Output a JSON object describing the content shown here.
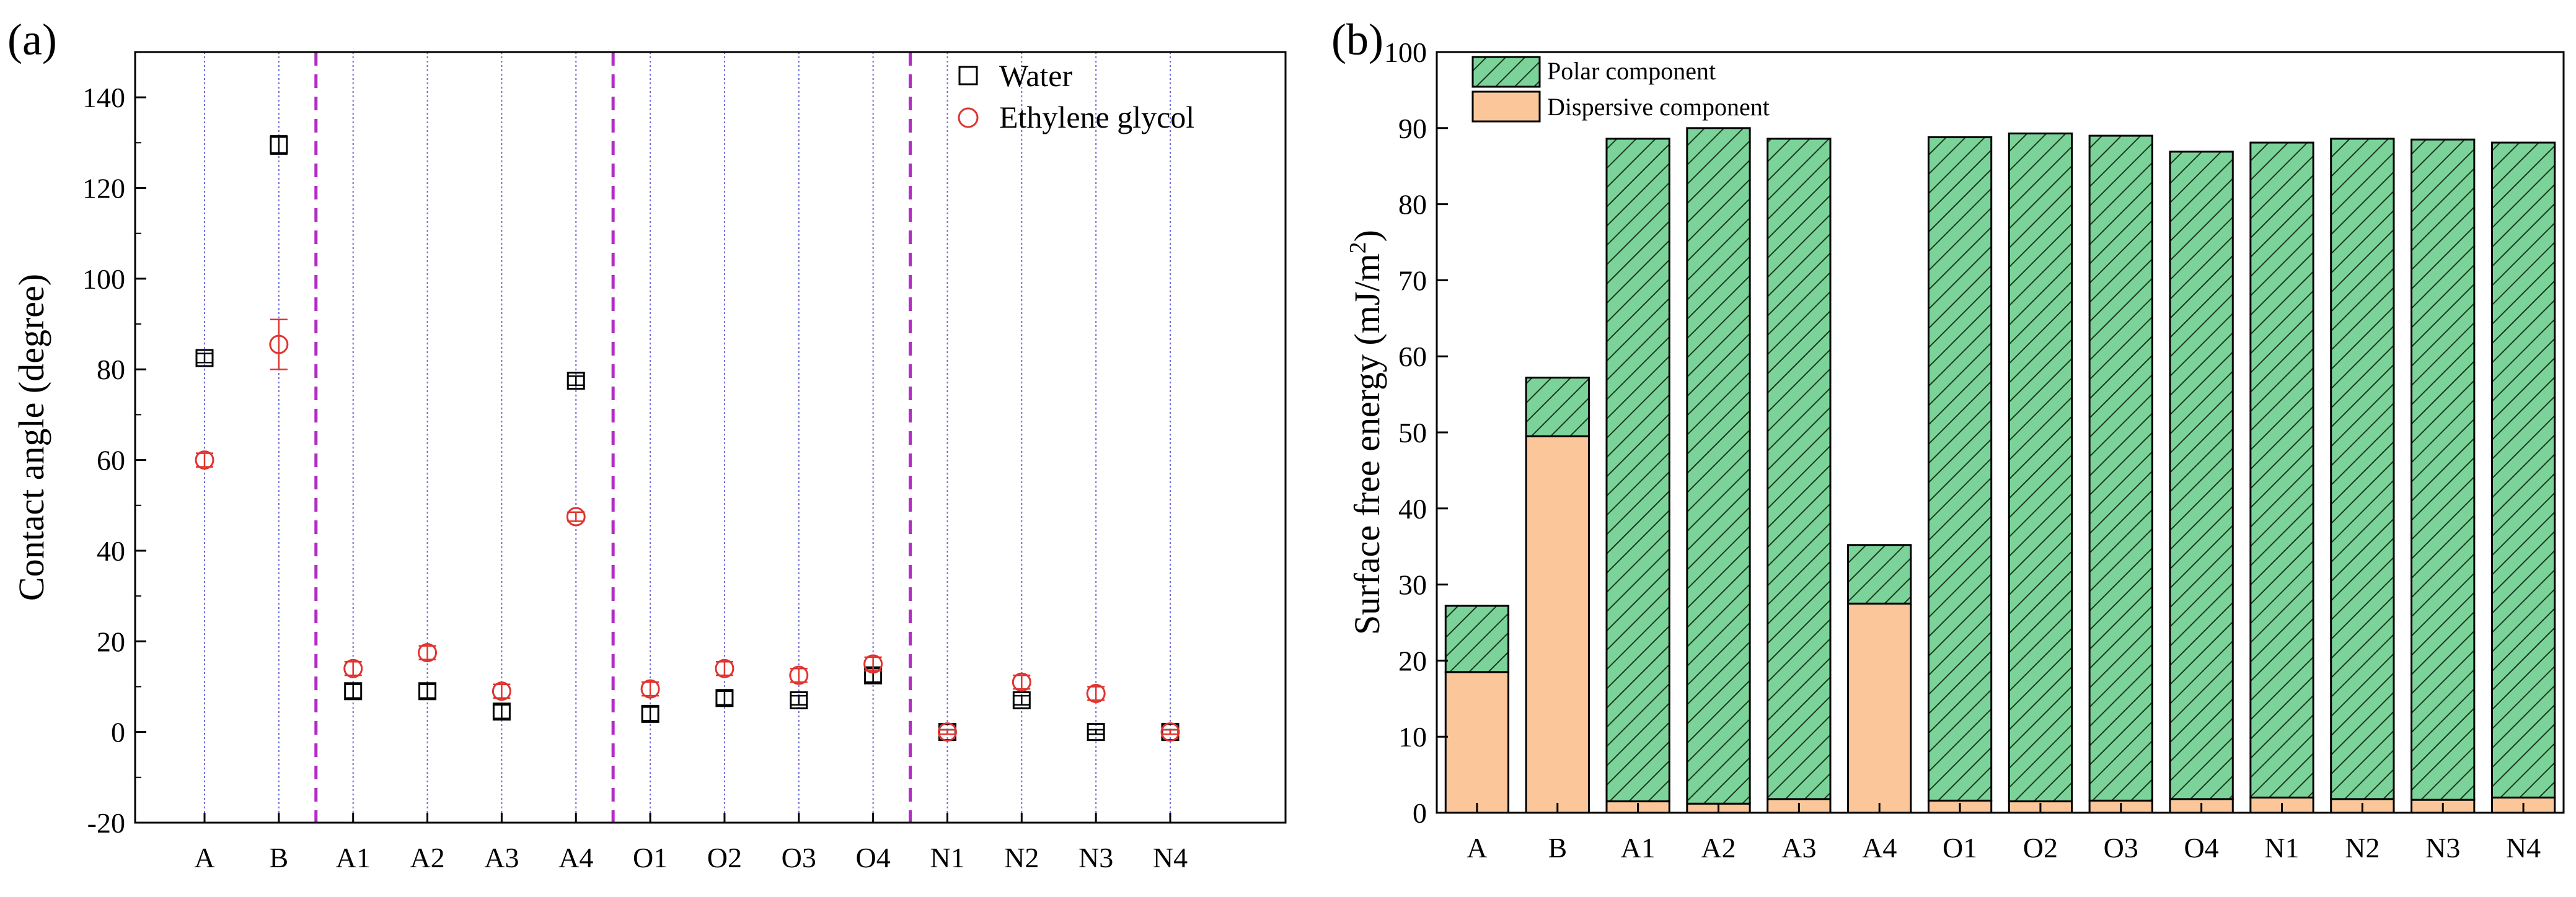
{
  "chart_data": [
    {
      "panel": "(a)",
      "type": "scatter",
      "categories": [
        "A",
        "B",
        "A1",
        "A2",
        "A3",
        "A4",
        "O1",
        "O2",
        "O3",
        "O4",
        "N1",
        "N2",
        "N3",
        "N4"
      ],
      "group_separators_after": [
        "B",
        "A4",
        "O4"
      ],
      "series": [
        {
          "name": "Water",
          "marker": "open-square",
          "color": "#000000",
          "values": [
            82.5,
            129.5,
            9,
            9,
            4.5,
            77.5,
            4,
            7.5,
            7,
            12.5,
            0,
            7,
            0,
            0
          ],
          "errors": [
            1,
            2,
            1.5,
            1.5,
            1.5,
            1,
            1.5,
            1.5,
            1,
            1.5,
            0.5,
            1,
            0.5,
            0.5
          ]
        },
        {
          "name": "Ethylene glycol",
          "marker": "open-circle",
          "color": "#e0332f",
          "values": [
            60,
            85.5,
            14,
            17.5,
            9,
            47.5,
            9.5,
            14,
            12.5,
            15,
            0,
            11,
            8.5,
            0
          ],
          "errors": [
            1.5,
            5.5,
            1.5,
            1.5,
            1.5,
            1,
            1.5,
            1.5,
            1.5,
            1.5,
            0.5,
            1.5,
            1.5,
            0.5
          ]
        }
      ],
      "ylabel": "Contact angle (degree)",
      "xlabel": "",
      "ylim": [
        -20,
        150
      ],
      "yticks": [
        -20,
        0,
        20,
        40,
        60,
        80,
        100,
        120,
        140
      ],
      "legend_position": "top-right"
    },
    {
      "panel": "(b)",
      "type": "bar",
      "stacked": true,
      "categories": [
        "A",
        "B",
        "A1",
        "A2",
        "A3",
        "A4",
        "O1",
        "O2",
        "O3",
        "O4",
        "N1",
        "N2",
        "N3",
        "N4"
      ],
      "series": [
        {
          "name": "Dispersive component",
          "color": "#fbc79a",
          "values": [
            18.5,
            49.5,
            1.5,
            1.2,
            1.8,
            27.5,
            1.6,
            1.5,
            1.6,
            1.8,
            2,
            1.8,
            1.7,
            2
          ]
        },
        {
          "name": "Polar component",
          "color": "#7cd39a",
          "hatch": "diagonal",
          "values": [
            8.7,
            7.7,
            87.1,
            88.8,
            86.8,
            7.7,
            87.2,
            87.8,
            87.4,
            85.1,
            86.1,
            86.8,
            86.8,
            86.1
          ]
        }
      ],
      "ylabel": "Surface free energy (mJ/m²)",
      "ylabel_parts": {
        "main": "Surface free energy (mJ/m",
        "sup": "2",
        "end": ")"
      },
      "xlabel": "",
      "ylim": [
        0,
        100
      ],
      "yticks": [
        0,
        10,
        20,
        30,
        40,
        50,
        60,
        70,
        80,
        90,
        100
      ],
      "legend_position": "top-left"
    }
  ]
}
